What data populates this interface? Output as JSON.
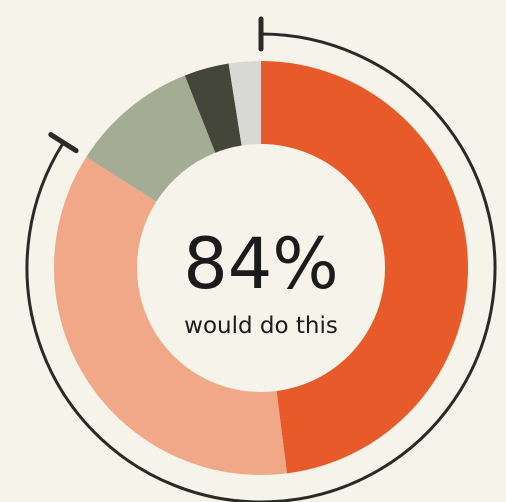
{
  "center": {
    "value": "84%",
    "caption": "would do this"
  },
  "colors": {
    "background": "#f5f3ea",
    "bracket": "#2a2a26"
  },
  "chart_data": {
    "type": "donut",
    "unit": "percent",
    "slices": [
      {
        "value": 48,
        "color": "#e85a2a"
      },
      {
        "value": 36,
        "color": "#f0a888"
      },
      {
        "value": 10,
        "color": "#a4ad93"
      },
      {
        "value": 3.5,
        "color": "#44463a"
      },
      {
        "value": 2.5,
        "color": "#d8d8d4"
      }
    ],
    "highlight": {
      "value": 84,
      "label": "84%"
    }
  }
}
